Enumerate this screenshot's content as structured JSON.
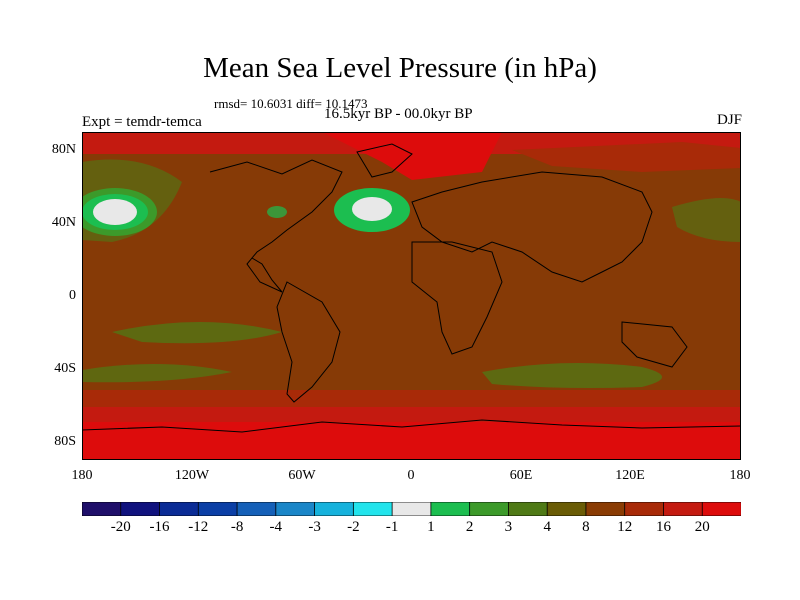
{
  "title": "Mean Sea Level Pressure (in hPa)",
  "stats": "rmsd= 10.6031 diff= 10.1473",
  "subtitle": "16.5kyr BP - 00.0kyr BP",
  "experiment": "Expt = temdr-temca",
  "season": "DJF",
  "y_ticks": [
    "80N",
    "40N",
    "0",
    "40S",
    "80S"
  ],
  "x_ticks": [
    "180",
    "120W",
    "60W",
    "0",
    "60E",
    "120E",
    "180"
  ],
  "legend": {
    "labels": [
      "-20",
      "-16",
      "-12",
      "-8",
      "-4",
      "-3",
      "-2",
      "-1",
      "1",
      "2",
      "3",
      "4",
      "8",
      "12",
      "16",
      "20"
    ],
    "colors": [
      "#1f0f6a",
      "#10127e",
      "#0b2c96",
      "#0b3fa6",
      "#1560b8",
      "#1a86c8",
      "#16b2dc",
      "#22e4ec",
      "#e8e8e8",
      "#1cbe50",
      "#3c9a2a",
      "#4f7a16",
      "#6a5c06",
      "#8a3c04",
      "#a82a08",
      "#c41a10",
      "#dd0c0c"
    ]
  },
  "colors": {
    "background_field": "#863a06",
    "positive_band": "#a82a08",
    "high_band": "#cf1410",
    "low_band": "#4f7a16",
    "coastline": "#000000"
  }
}
